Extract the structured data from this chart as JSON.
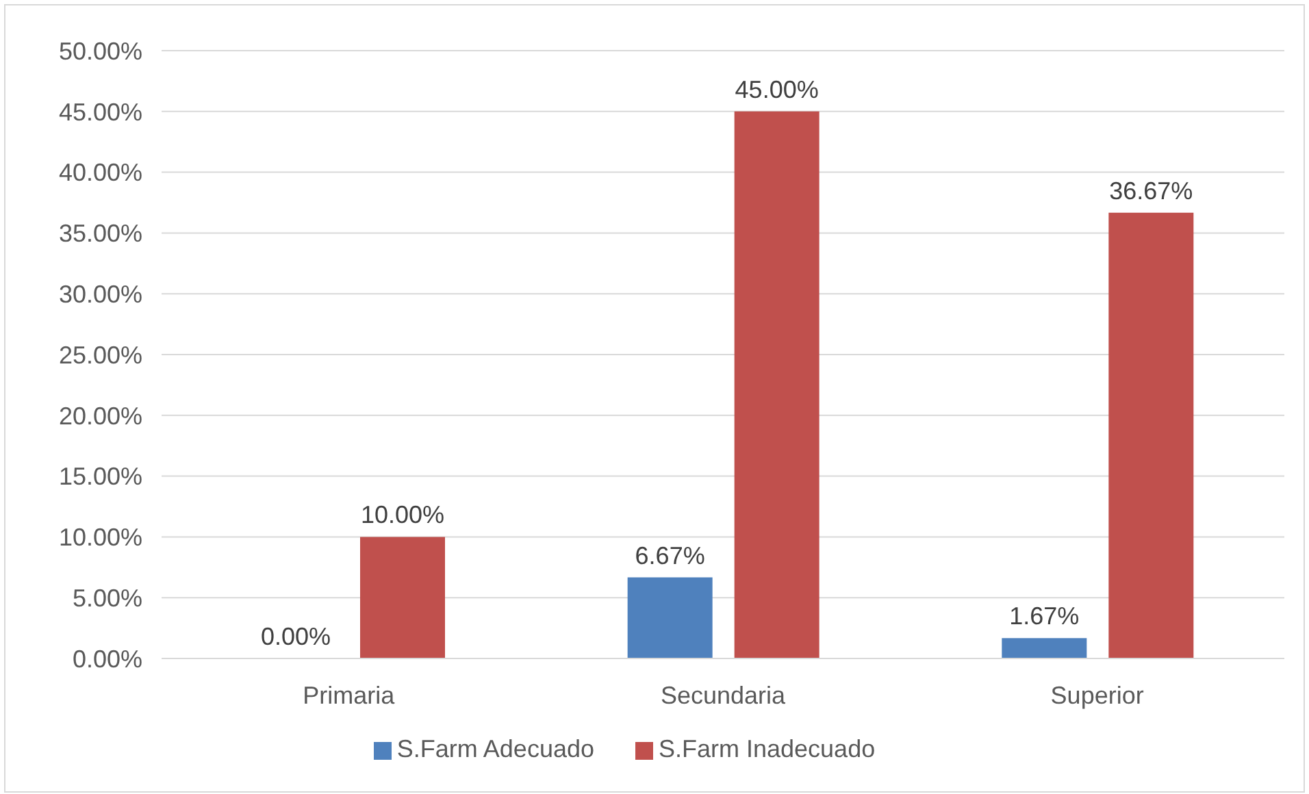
{
  "chart_data": {
    "type": "bar",
    "categories": [
      "Primaria",
      "Secundaria",
      "Superior"
    ],
    "series": [
      {
        "name": "S.Farm Adecuado",
        "color": "#4f81bd",
        "values": [
          0,
          6.67,
          1.67
        ],
        "value_labels": [
          "0.00%",
          "6.67%",
          "1.67%"
        ]
      },
      {
        "name": "S.Farm Inadecuado",
        "color": "#c0504d",
        "values": [
          10,
          45,
          36.67
        ],
        "value_labels": [
          "10.00%",
          "45.00%",
          "36.67%"
        ]
      }
    ],
    "ylim": [
      0,
      50
    ],
    "yticks": [
      {
        "value": 0,
        "label": "0.00%"
      },
      {
        "value": 5,
        "label": "5.00%"
      },
      {
        "value": 10,
        "label": "10.00%"
      },
      {
        "value": 15,
        "label": "15.00%"
      },
      {
        "value": 20,
        "label": "20.00%"
      },
      {
        "value": 25,
        "label": "25.00%"
      },
      {
        "value": 30,
        "label": "30.00%"
      },
      {
        "value": 35,
        "label": "35.00%"
      },
      {
        "value": 40,
        "label": "40.00%"
      },
      {
        "value": 45,
        "label": "45.00%"
      },
      {
        "value": 50,
        "label": "50.00%"
      }
    ],
    "grid": "y",
    "legend": "bottom"
  }
}
